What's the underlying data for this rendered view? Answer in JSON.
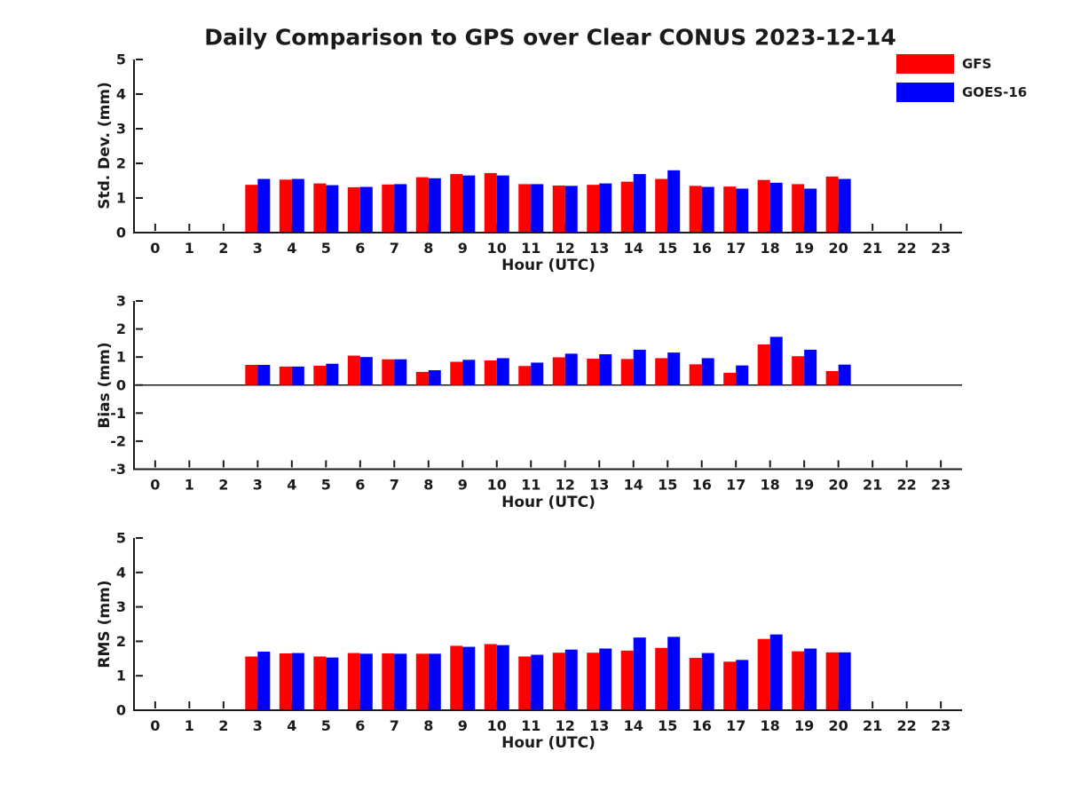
{
  "title": "Daily Comparison to GPS over Clear CONUS 2023-12-14",
  "colors": {
    "gfs": "#ff0000",
    "goes16": "#0000ff",
    "axis": "#1a1a1a"
  },
  "legend": {
    "entries": [
      {
        "label": "GFS",
        "color": "#ff0000"
      },
      {
        "label": "GOES-16",
        "color": "#0000ff"
      }
    ]
  },
  "chart_data": [
    {
      "type": "bar",
      "ylabel": "Std. Dev. (mm)",
      "xlabel": "Hour (UTC)",
      "ylim": [
        0,
        5
      ],
      "yticks": [
        0,
        1,
        2,
        3,
        4,
        5
      ],
      "xticks": [
        "0",
        "1",
        "2",
        "3",
        "4",
        "5",
        "6",
        "7",
        "8",
        "9",
        "10",
        "11",
        "12",
        "13",
        "14",
        "15",
        "16",
        "17",
        "18",
        "19",
        "20",
        "21",
        "22",
        "23"
      ],
      "categories": [
        3,
        4,
        5,
        6,
        7,
        8,
        9,
        10,
        11,
        12,
        13,
        14,
        15,
        16,
        17,
        18,
        19,
        20
      ],
      "legend_position": "upper right outside",
      "grid": false,
      "series": [
        {
          "name": "GFS",
          "color": "#ff0000",
          "values": [
            1.38,
            1.53,
            1.42,
            1.31,
            1.39,
            1.6,
            1.69,
            1.72,
            1.4,
            1.36,
            1.38,
            1.47,
            1.55,
            1.35,
            1.33,
            1.52,
            1.4,
            1.62
          ]
        },
        {
          "name": "GOES-16",
          "color": "#0000ff",
          "values": [
            1.55,
            1.55,
            1.37,
            1.32,
            1.4,
            1.57,
            1.65,
            1.65,
            1.4,
            1.35,
            1.42,
            1.69,
            1.8,
            1.32,
            1.27,
            1.44,
            1.27,
            1.55
          ]
        }
      ]
    },
    {
      "type": "bar",
      "ylabel": "Bias (mm)",
      "xlabel": "Hour (UTC)",
      "ylim": [
        -3,
        3
      ],
      "yticks": [
        -3,
        -2,
        -1,
        0,
        1,
        2,
        3
      ],
      "xticks": [
        "0",
        "1",
        "2",
        "3",
        "4",
        "5",
        "6",
        "7",
        "8",
        "9",
        "10",
        "11",
        "12",
        "13",
        "14",
        "15",
        "16",
        "17",
        "18",
        "19",
        "20",
        "21",
        "22",
        "23"
      ],
      "categories": [
        3,
        4,
        5,
        6,
        7,
        8,
        9,
        10,
        11,
        12,
        13,
        14,
        15,
        16,
        17,
        18,
        19,
        20
      ],
      "zero_line": true,
      "grid": false,
      "series": [
        {
          "name": "GFS",
          "color": "#ff0000",
          "values": [
            0.72,
            0.66,
            0.69,
            1.05,
            0.92,
            0.47,
            0.83,
            0.88,
            0.68,
            0.99,
            0.94,
            0.93,
            0.96,
            0.74,
            0.44,
            1.45,
            1.03,
            0.5
          ]
        },
        {
          "name": "GOES-16",
          "color": "#0000ff",
          "values": [
            0.72,
            0.66,
            0.76,
            1.0,
            0.92,
            0.53,
            0.9,
            0.96,
            0.8,
            1.12,
            1.1,
            1.26,
            1.16,
            0.96,
            0.7,
            1.72,
            1.26,
            0.73
          ]
        }
      ]
    },
    {
      "type": "bar",
      "ylabel": "RMS (mm)",
      "xlabel": "Hour (UTC)",
      "ylim": [
        0,
        5
      ],
      "yticks": [
        0,
        1,
        2,
        3,
        4,
        5
      ],
      "xticks": [
        "0",
        "1",
        "2",
        "3",
        "4",
        "5",
        "6",
        "7",
        "8",
        "9",
        "10",
        "11",
        "12",
        "13",
        "14",
        "15",
        "16",
        "17",
        "18",
        "19",
        "20",
        "21",
        "22",
        "23"
      ],
      "categories": [
        3,
        4,
        5,
        6,
        7,
        8,
        9,
        10,
        11,
        12,
        13,
        14,
        15,
        16,
        17,
        18,
        19,
        20
      ],
      "grid": false,
      "series": [
        {
          "name": "GFS",
          "color": "#ff0000",
          "values": [
            1.56,
            1.65,
            1.56,
            1.66,
            1.65,
            1.64,
            1.87,
            1.92,
            1.56,
            1.67,
            1.67,
            1.73,
            1.81,
            1.52,
            1.41,
            2.07,
            1.71,
            1.68
          ]
        },
        {
          "name": "GOES-16",
          "color": "#0000ff",
          "values": [
            1.7,
            1.66,
            1.53,
            1.64,
            1.64,
            1.64,
            1.84,
            1.89,
            1.61,
            1.76,
            1.79,
            2.11,
            2.13,
            1.66,
            1.46,
            2.2,
            1.79,
            1.68
          ]
        }
      ]
    }
  ]
}
